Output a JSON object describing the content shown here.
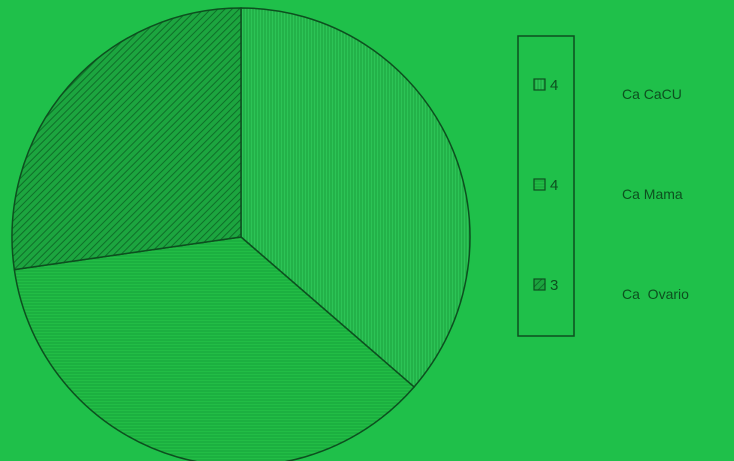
{
  "chart_data": {
    "type": "pie",
    "title": "",
    "legend_placement": "right",
    "start_angle_deg": 0,
    "direction": "clockwise",
    "slices": [
      {
        "code": "4",
        "label": "Ca CaCU",
        "value": 4,
        "pattern": "vertical-lines",
        "fill": "#2cc456"
      },
      {
        "code": "4",
        "label": "Ca Mama",
        "value": 4,
        "pattern": "horizontal-lines",
        "fill": "#22bd45"
      },
      {
        "code": "3",
        "label": "Ca  Ovario",
        "value": 3,
        "pattern": "diagonal-lines",
        "fill": "#17a63b"
      }
    ],
    "colors": {
      "background": "#1fc04a",
      "stroke": "#0d4f1f"
    }
  }
}
